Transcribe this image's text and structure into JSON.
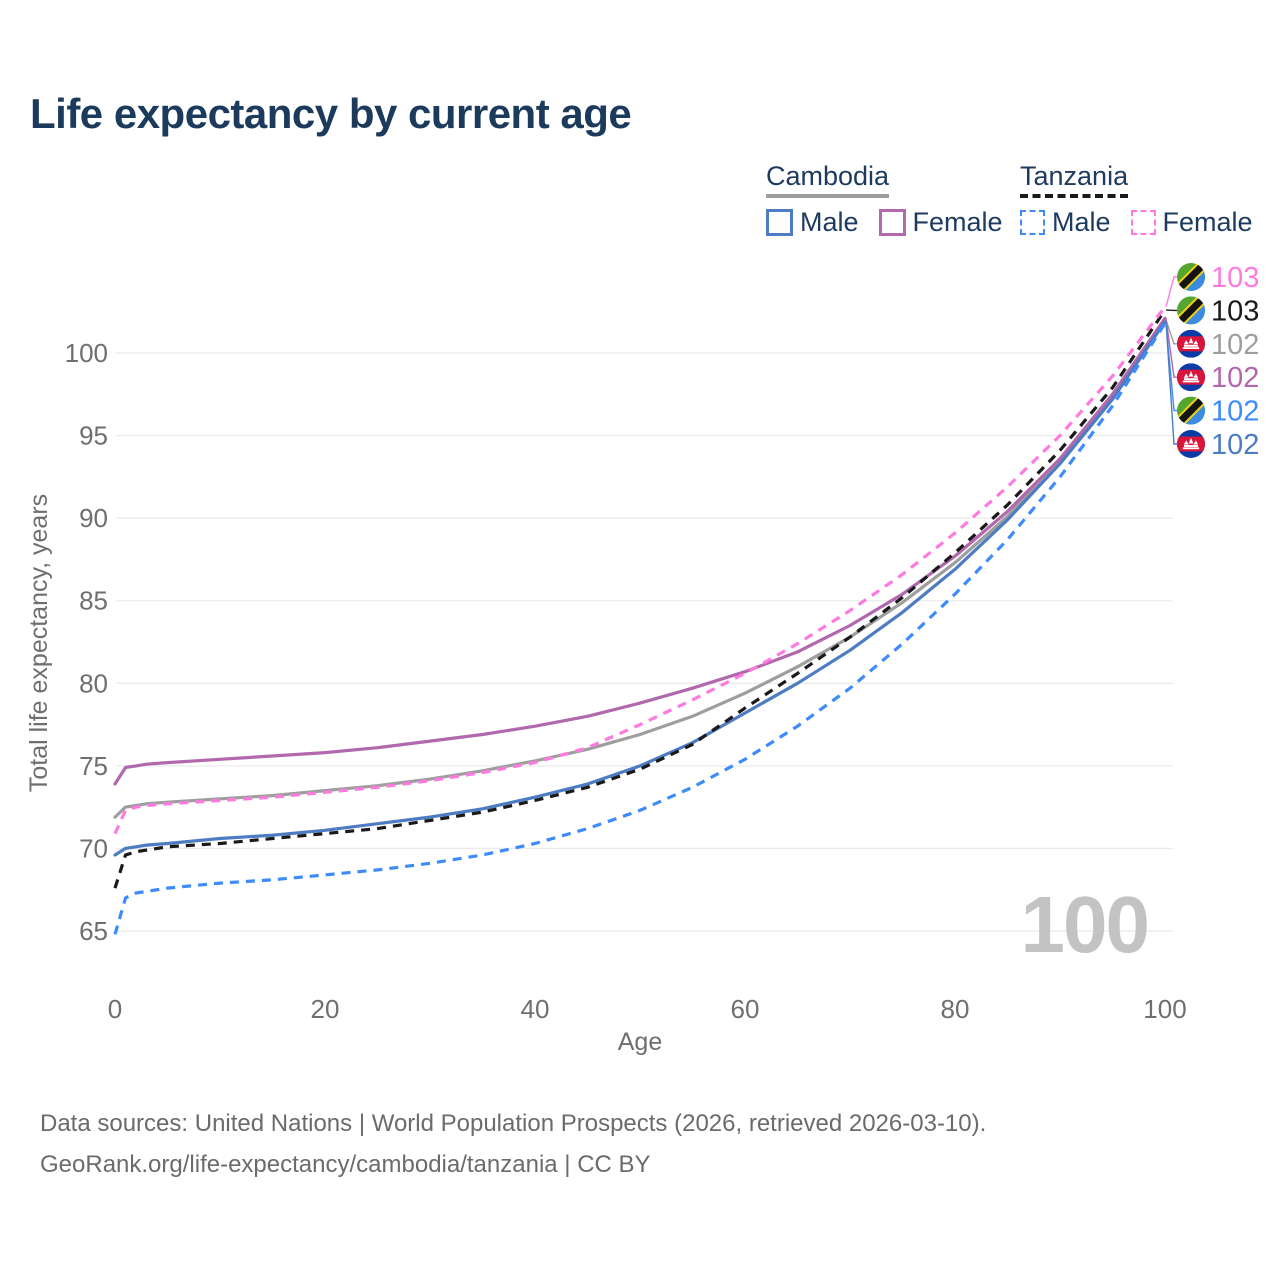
{
  "title": "Life expectancy by current age",
  "colors": {
    "title_text": "#1c3a5c",
    "legend_text": "#1d3a5f",
    "axis_text": "#6f6f6f",
    "grid": "#ebebeb",
    "watermark": "#c3c3c3",
    "source_text": "#6b6b6b",
    "cambodia_male": "#4d7cc3",
    "cambodia_female": "#b168ad",
    "cambodia_both": "#9e9e9e",
    "tanzania_male": "#3d8bfd",
    "tanzania_female": "#ff7ae0",
    "tanzania_both": "#1a1a1a"
  },
  "legend": {
    "groups": [
      {
        "label": "Cambodia",
        "line_style": "solid",
        "underline_color": "#9e9e9e",
        "items": [
          {
            "label": "Male",
            "color": "#4d7cc3"
          },
          {
            "label": "Female",
            "color": "#b168ad"
          }
        ]
      },
      {
        "label": "Tanzania",
        "line_style": "dashed",
        "underline_color": "#1a1a1a",
        "items": [
          {
            "label": "Male",
            "color": "#3d8bfd"
          },
          {
            "label": "Female",
            "color": "#ff7ae0"
          }
        ]
      }
    ]
  },
  "chart_data": {
    "type": "line",
    "title": "Life expectancy by current age",
    "xlabel": "Age",
    "ylabel": "Total life expectancy, years",
    "x_ticks": [
      0,
      20,
      40,
      60,
      80,
      100
    ],
    "y_ticks": [
      65,
      70,
      75,
      80,
      85,
      90,
      95,
      100
    ],
    "xlim": [
      0,
      100
    ],
    "ylim": [
      63,
      104
    ],
    "grid": "horizontal",
    "legend_position": "top-right",
    "watermark": "100",
    "ages": [
      0,
      1,
      2,
      3,
      5,
      10,
      15,
      20,
      25,
      30,
      35,
      40,
      45,
      50,
      55,
      60,
      65,
      70,
      75,
      80,
      85,
      90,
      95,
      100
    ],
    "series": [
      {
        "key": "cambodia_both",
        "name": "Cambodia Both sexes",
        "country": "Cambodia",
        "sex": "Both",
        "color": "#9e9e9e",
        "dash": false,
        "values": [
          71.9,
          72.5,
          72.6,
          72.7,
          72.8,
          73.0,
          73.2,
          73.5,
          73.8,
          74.2,
          74.7,
          75.3,
          76.0,
          76.9,
          78.0,
          79.4,
          81.0,
          82.8,
          84.9,
          87.3,
          90.1,
          93.5,
          97.3,
          102.0
        ]
      },
      {
        "key": "cambodia_female",
        "name": "Cambodia Female",
        "country": "Cambodia",
        "sex": "Female",
        "color": "#b168ad",
        "dash": false,
        "values": [
          73.9,
          74.9,
          75.0,
          75.1,
          75.2,
          75.4,
          75.6,
          75.8,
          76.1,
          76.5,
          76.9,
          77.4,
          78.0,
          78.8,
          79.7,
          80.7,
          81.9,
          83.5,
          85.4,
          87.7,
          90.4,
          93.6,
          97.5,
          102.1
        ]
      },
      {
        "key": "cambodia_male",
        "name": "Cambodia Male",
        "country": "Cambodia",
        "sex": "Male",
        "color": "#4d7cc3",
        "dash": false,
        "values": [
          69.6,
          70.0,
          70.1,
          70.2,
          70.3,
          70.6,
          70.8,
          71.1,
          71.5,
          71.9,
          72.4,
          73.1,
          73.9,
          75.0,
          76.4,
          78.2,
          80.0,
          82.0,
          84.3,
          86.9,
          89.9,
          93.3,
          97.2,
          101.9
        ]
      },
      {
        "key": "tanzania_both",
        "name": "Tanzania Both sexes",
        "country": "Tanzania",
        "sex": "Both",
        "color": "#1a1a1a",
        "dash": true,
        "values": [
          67.6,
          69.6,
          69.8,
          69.9,
          70.1,
          70.3,
          70.6,
          70.9,
          71.2,
          71.7,
          72.2,
          72.9,
          73.7,
          74.8,
          76.3,
          78.5,
          80.6,
          82.8,
          85.2,
          87.9,
          90.8,
          94.1,
          97.9,
          102.6
        ]
      },
      {
        "key": "tanzania_female",
        "name": "Tanzania Female",
        "country": "Tanzania",
        "sex": "Female",
        "color": "#ff7ae0",
        "dash": true,
        "values": [
          70.9,
          72.3,
          72.5,
          72.6,
          72.7,
          72.9,
          73.1,
          73.4,
          73.7,
          74.1,
          74.6,
          75.2,
          76.1,
          77.5,
          79.0,
          80.6,
          82.4,
          84.4,
          86.6,
          89.1,
          91.9,
          95.0,
          98.6,
          102.8
        ]
      },
      {
        "key": "tanzania_male",
        "name": "Tanzania Male",
        "country": "Tanzania",
        "sex": "Male",
        "color": "#3d8bfd",
        "dash": true,
        "values": [
          64.8,
          67.0,
          67.3,
          67.4,
          67.6,
          67.9,
          68.1,
          68.4,
          68.7,
          69.1,
          69.6,
          70.3,
          71.2,
          72.3,
          73.7,
          75.4,
          77.4,
          79.7,
          82.4,
          85.4,
          88.7,
          92.5,
          96.8,
          101.8
        ]
      }
    ],
    "end_labels": [
      {
        "value": "103",
        "series": "tanzania_female",
        "flag": "tanzania"
      },
      {
        "value": "103",
        "series": "tanzania_both",
        "flag": "tanzania"
      },
      {
        "value": "102",
        "series": "cambodia_both",
        "flag": "cambodia"
      },
      {
        "value": "102",
        "series": "cambodia_female",
        "flag": "cambodia"
      },
      {
        "value": "102",
        "series": "tanzania_male",
        "flag": "tanzania"
      },
      {
        "value": "102",
        "series": "cambodia_male",
        "flag": "cambodia"
      }
    ]
  },
  "source": {
    "line1": "Data sources: United Nations | World Population Prospects (2026, retrieved 2026-03-10).",
    "line2": "GeoRank.org/life-expectancy/cambodia/tanzania | CC BY"
  }
}
